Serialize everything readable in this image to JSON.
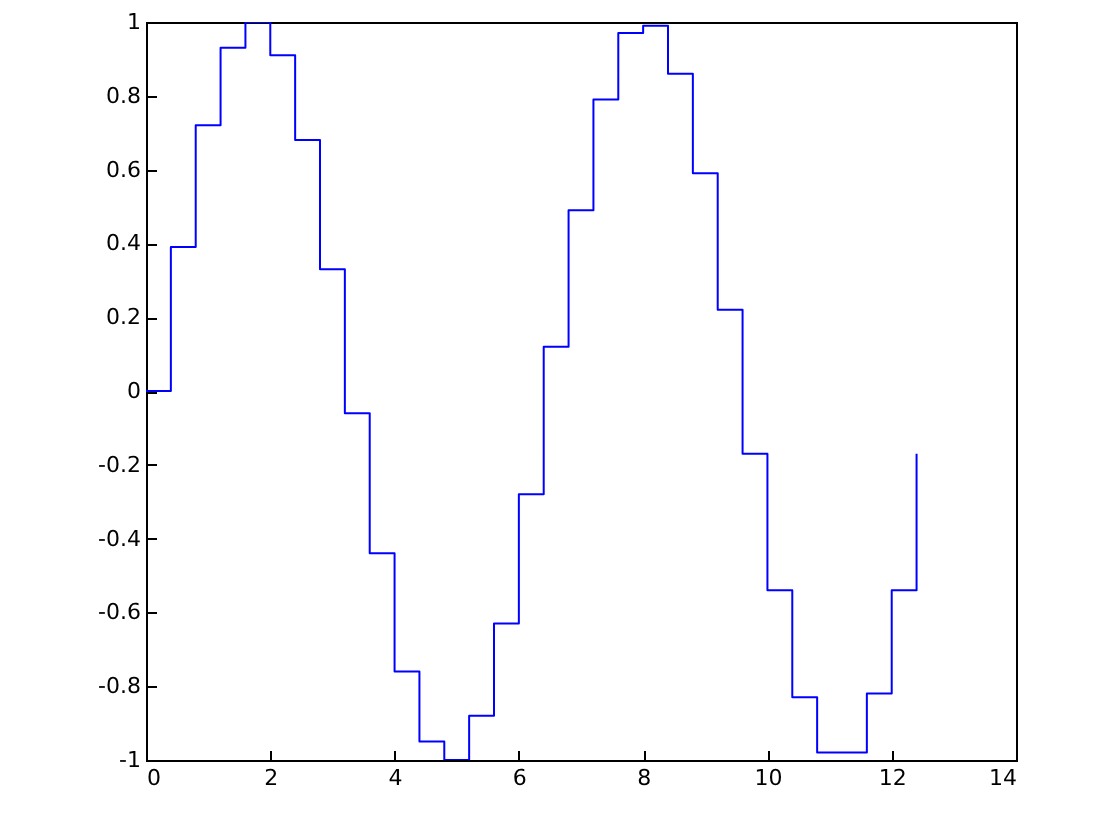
{
  "chart_data": {
    "type": "step",
    "x": [
      0,
      0.4,
      0.8,
      1.2,
      1.6,
      2.0,
      2.4,
      2.8,
      3.2,
      3.6,
      4.0,
      4.4,
      4.8,
      5.2,
      5.6,
      6.0,
      6.4,
      6.8,
      7.2,
      7.6,
      8.0,
      8.4,
      8.8,
      9.2,
      9.6,
      10.0,
      10.4,
      10.8,
      11.2,
      11.6,
      12.0,
      12.4
    ],
    "values": [
      0,
      0.39,
      0.72,
      0.93,
      1.0,
      0.91,
      0.68,
      0.33,
      -0.06,
      -0.44,
      -0.76,
      -0.95,
      -1.0,
      -0.88,
      -0.63,
      -0.28,
      0.12,
      0.49,
      0.79,
      0.97,
      0.99,
      0.86,
      0.59,
      0.22,
      -0.17,
      -0.54,
      -0.83,
      -0.98,
      -0.98,
      -0.82,
      -0.54,
      -0.17
    ],
    "color": "#0000ff",
    "xlim": [
      0,
      14
    ],
    "xticks": [
      0,
      2,
      4,
      6,
      8,
      10,
      12,
      14
    ],
    "ylim": [
      -1,
      1
    ],
    "yticks": [
      -1,
      -0.8,
      -0.6,
      -0.4,
      -0.2,
      0,
      0.2,
      0.4,
      0.6,
      0.8,
      1
    ]
  }
}
